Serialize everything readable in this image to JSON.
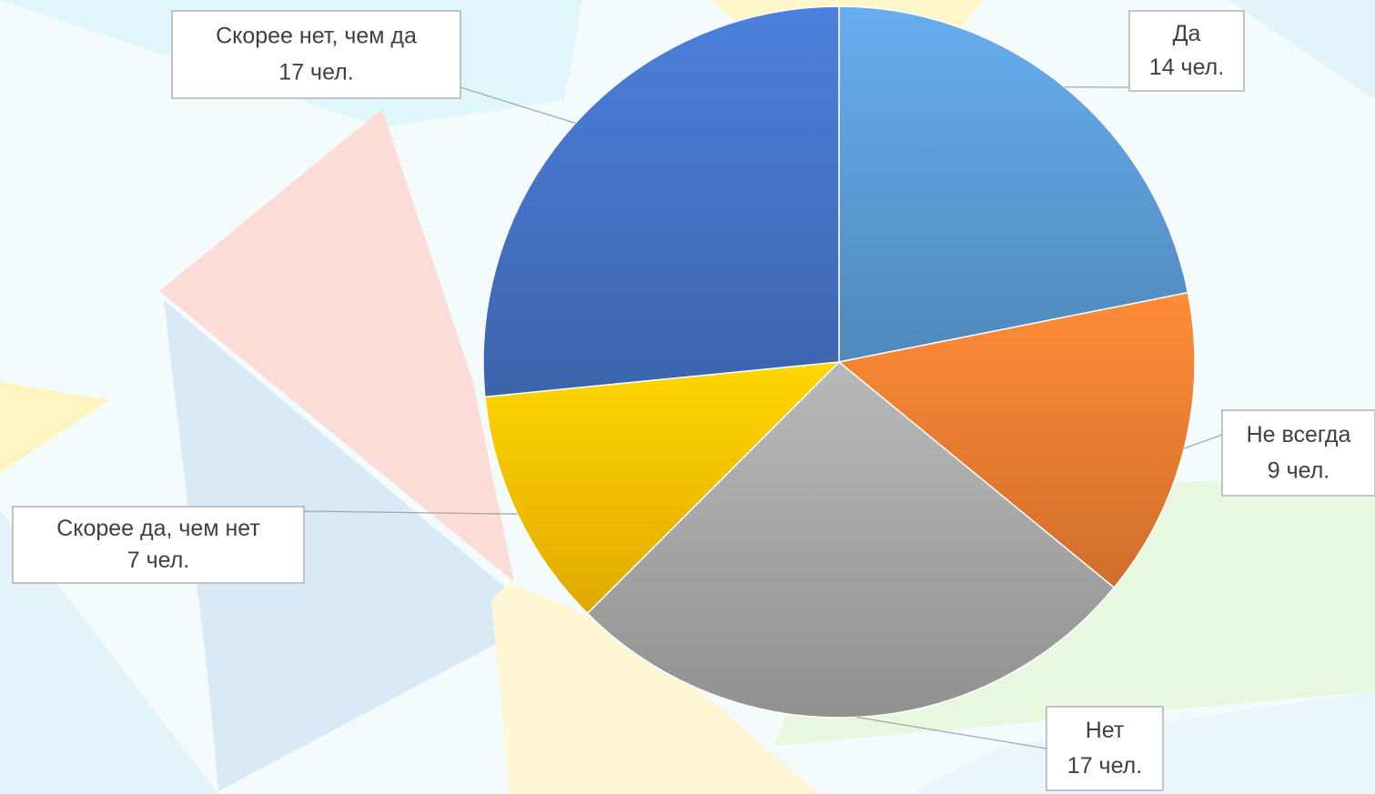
{
  "chart_data": {
    "type": "pie",
    "categories": [
      "Да",
      "Не всегда",
      "Нет",
      "Скорее да, чем нет",
      "Скорее нет, чем да"
    ],
    "values": [
      14,
      9,
      17,
      7,
      17
    ],
    "value_labels": [
      "14 чел.",
      "9 чел.",
      "17 чел.",
      "7 чел.",
      "17 чел."
    ],
    "colors": [
      "#5b9bd5",
      "#ed7d31",
      "#a5a5a5",
      "#ffc000",
      "#4472c4"
    ]
  }
}
